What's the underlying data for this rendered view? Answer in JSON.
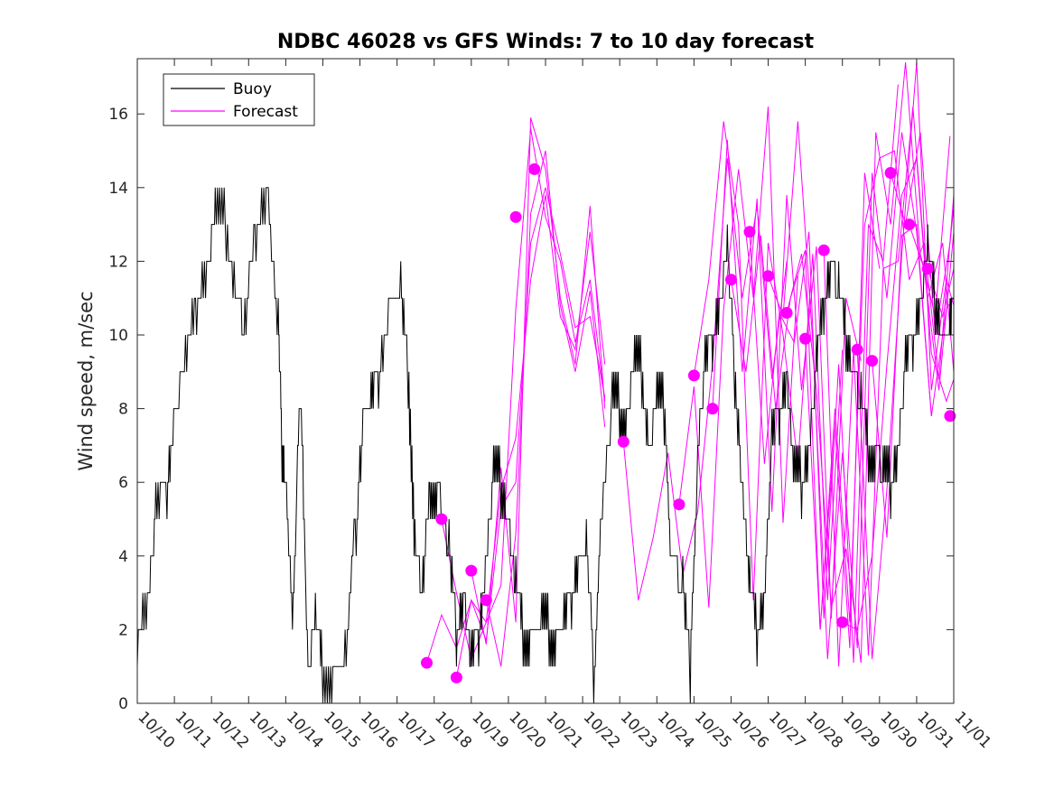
{
  "chart_data": {
    "type": "line",
    "title": "NDBC 46028 vs GFS Winds: 7 to 10 day forecast",
    "xlabel": "",
    "ylabel": "Wind speed, m/sec",
    "xlim": [
      0,
      22
    ],
    "ylim": [
      0,
      17.5
    ],
    "x_tick_labels": [
      "10/10",
      "10/11",
      "10/12",
      "10/13",
      "10/14",
      "10/15",
      "10/16",
      "10/17",
      "10/18",
      "10/19",
      "10/20",
      "10/21",
      "10/22",
      "10/23",
      "10/24",
      "10/25",
      "10/26",
      "10/27",
      "10/28",
      "10/29",
      "10/30",
      "10/31",
      "11/01"
    ],
    "y_ticks": [
      0,
      2,
      4,
      6,
      8,
      10,
      12,
      14,
      16
    ],
    "legend": {
      "position": "top-left",
      "entries": [
        {
          "label": "Buoy",
          "color": "#000000"
        },
        {
          "label": "Forecast",
          "color": "#ff00ff"
        }
      ]
    },
    "grid": false,
    "series": [
      {
        "name": "Buoy",
        "color": "#000000",
        "x": [
          0.0,
          0.3,
          0.5,
          0.8,
          1.0,
          1.3,
          1.6,
          1.9,
          2.1,
          2.4,
          2.7,
          2.9,
          3.2,
          3.5,
          3.8,
          3.9,
          4.0,
          4.2,
          4.4,
          4.6,
          4.8,
          5.0,
          5.3,
          5.6,
          5.9,
          6.1,
          6.3,
          6.5,
          6.8,
          7.1,
          7.3,
          7.5,
          7.7,
          7.9,
          8.1,
          8.4,
          8.6,
          8.8,
          9.0,
          9.2,
          9.4,
          9.6,
          9.8,
          10.0,
          10.2,
          10.4,
          10.6,
          10.9,
          11.1,
          11.3,
          11.5,
          11.7,
          11.9,
          12.1,
          12.3,
          12.5,
          12.8,
          13.0,
          13.2,
          13.4,
          13.6,
          13.8,
          14.0,
          14.2,
          14.4,
          14.7,
          14.9,
          15.1,
          15.3,
          15.5,
          15.7,
          15.9,
          16.1,
          16.3,
          16.5,
          16.7,
          16.9,
          17.1,
          17.3,
          17.5,
          17.7,
          17.9,
          18.1,
          18.3,
          18.5,
          18.7,
          18.9,
          19.1,
          19.3,
          19.5,
          19.7,
          19.9,
          20.1,
          20.3,
          20.5,
          20.7,
          20.9,
          21.1,
          21.3,
          21.5,
          21.7,
          21.9,
          22.0
        ],
        "values": [
          2,
          3,
          5,
          6,
          8,
          9,
          11,
          12,
          13,
          13,
          11,
          10,
          13,
          14,
          10,
          7,
          6,
          2,
          9,
          1,
          2,
          1,
          1,
          1,
          5,
          8,
          8,
          9,
          11,
          11,
          9,
          4,
          3,
          6,
          6,
          4,
          2,
          3,
          1,
          2,
          4,
          6,
          6,
          5,
          3,
          2,
          2,
          2,
          2,
          2,
          2,
          3,
          4,
          4,
          1,
          5,
          8,
          8,
          8,
          9,
          9,
          7,
          8,
          8,
          4,
          3,
          1,
          7,
          9,
          10,
          11,
          12,
          9,
          6,
          3,
          2,
          3,
          7,
          8,
          9,
          6,
          6,
          7,
          9,
          11,
          12,
          11,
          10,
          9,
          8,
          7,
          7,
          6,
          6,
          7,
          9,
          10,
          11,
          12,
          11,
          10,
          10,
          11
        ]
      },
      {
        "name": "Forecast run 1",
        "color": "#ff00ff",
        "x": [
          7.8,
          8.2,
          8.6,
          9.0,
          9.4,
          9.8,
          10.2,
          10.6,
          11.0,
          11.4,
          11.8,
          12.2,
          12.6
        ],
        "values": [
          1.1,
          2.4,
          1.5,
          2.8,
          2.2,
          5.8,
          7.2,
          11.5,
          13.8,
          10.5,
          9.6,
          12.8,
          9.2
        ]
      },
      {
        "name": "Forecast run 2",
        "color": "#ff00ff",
        "x": [
          8.2,
          8.6,
          9.0,
          9.4,
          9.8,
          10.2,
          10.6,
          11.0,
          11.4,
          11.8,
          12.2,
          12.6
        ],
        "values": [
          5.0,
          3.0,
          1.2,
          2.2,
          3.2,
          10.7,
          15.6,
          13.2,
          12.0,
          9.8,
          11.5,
          8.2
        ]
      },
      {
        "name": "Forecast run 3",
        "color": "#ff00ff",
        "x": [
          8.6,
          9.0,
          9.4,
          9.8,
          10.2,
          10.6,
          11.0,
          11.4,
          11.8,
          12.2,
          12.6
        ],
        "values": [
          0.7,
          2.8,
          1.7,
          5.3,
          6.0,
          12.5,
          14.0,
          12.2,
          10.2,
          10.5,
          8.3
        ]
      },
      {
        "name": "Forecast run 4",
        "color": "#ff00ff",
        "x": [
          9.0,
          9.4,
          9.8,
          10.2,
          10.6,
          11.0,
          11.4,
          11.8,
          12.2,
          12.6
        ],
        "values": [
          3.6,
          1.6,
          6.4,
          2.2,
          15.9,
          14.5,
          11.0,
          9.2,
          13.5,
          8.0
        ]
      },
      {
        "name": "Forecast run 5",
        "color": "#ff00ff",
        "x": [
          9.4,
          9.8,
          10.2,
          10.6,
          11.0,
          11.4,
          11.8,
          12.2,
          12.6
        ],
        "values": [
          2.8,
          1.0,
          4.6,
          13.3,
          15.0,
          10.8,
          9.0,
          11.2,
          7.5
        ]
      },
      {
        "name": "Forecast run 6",
        "color": "#ff00ff",
        "x": [
          13.1,
          13.5,
          13.9,
          14.3,
          14.7,
          15.1,
          15.5,
          15.9,
          16.3,
          16.7,
          17.1,
          17.5
        ],
        "values": [
          7.1,
          2.8,
          4.5,
          6.8,
          3.5,
          5.2,
          9.2,
          14.8,
          11.0,
          13.5,
          8.8,
          12.0
        ]
      },
      {
        "name": "Forecast run 7",
        "color": "#ff00ff",
        "x": [
          14.6,
          15.0,
          15.4,
          15.8,
          16.2,
          16.6,
          17.0,
          17.4,
          17.8
        ],
        "values": [
          5.4,
          8.6,
          2.6,
          10.7,
          14.5,
          11.0,
          16.2,
          4.9,
          11.6
        ]
      },
      {
        "name": "Forecast run 8",
        "color": "#ff00ff",
        "x": [
          15.0,
          15.4,
          15.8,
          16.2,
          16.6,
          17.0,
          17.4,
          17.8,
          18.2,
          18.6,
          19.0
        ],
        "values": [
          8.9,
          11.5,
          15.8,
          13.0,
          2.8,
          12.5,
          10.0,
          6.5,
          12.2,
          2.8,
          9.6
        ]
      },
      {
        "name": "Forecast run 9",
        "color": "#ff00ff",
        "x": [
          15.5,
          15.9,
          16.3,
          16.7,
          17.1,
          17.5,
          17.9,
          18.3,
          18.7,
          19.1,
          19.5
        ],
        "values": [
          8.0,
          15.3,
          9.0,
          13.7,
          5.2,
          13.8,
          8.5,
          12.4,
          2.3,
          11.0,
          9.3
        ]
      },
      {
        "name": "Forecast run 10",
        "color": "#ff00ff",
        "x": [
          16.0,
          16.4,
          16.8,
          17.2,
          17.6,
          18.0,
          18.4,
          18.8,
          19.2,
          19.6,
          20.0
        ],
        "values": [
          11.5,
          9.0,
          12.7,
          8.0,
          11.0,
          12.3,
          2.0,
          7.5,
          1.5,
          14.4,
          11.8
        ]
      },
      {
        "name": "Forecast run 11",
        "color": "#ff00ff",
        "x": [
          16.5,
          16.9,
          17.3,
          17.7,
          18.1,
          18.5,
          18.9,
          19.3,
          19.7,
          20.1,
          20.5
        ],
        "values": [
          12.8,
          6.5,
          10.6,
          9.8,
          12.8,
          2.3,
          9.2,
          1.1,
          13.0,
          12.0,
          16.8
        ]
      },
      {
        "name": "Forecast run 12",
        "color": "#ff00ff",
        "x": [
          17.0,
          17.4,
          17.8,
          18.2,
          18.6,
          19.0,
          19.4,
          19.8,
          20.2,
          20.6,
          21.0,
          21.4
        ],
        "values": [
          11.6,
          10.5,
          15.8,
          9.8,
          1.2,
          6.8,
          1.5,
          14.4,
          11.0,
          15.5,
          12.8,
          7.8
        ]
      },
      {
        "name": "Forecast run 13",
        "color": "#ff00ff",
        "x": [
          17.5,
          17.9,
          18.3,
          18.7,
          19.1,
          19.5,
          19.9,
          20.3,
          20.7,
          21.1,
          21.5,
          21.9
        ],
        "values": [
          10.6,
          12.2,
          8.5,
          2.6,
          4.2,
          1.1,
          15.5,
          13.0,
          17.4,
          12.2,
          10.5,
          15.4
        ]
      },
      {
        "name": "Forecast run 14",
        "color": "#ff00ff",
        "x": [
          18.0,
          18.4,
          18.8,
          19.2,
          19.6,
          20.0,
          20.4,
          20.8,
          21.2,
          21.6,
          22.0
        ],
        "values": [
          9.9,
          2.0,
          8.0,
          2.2,
          13.0,
          14.8,
          15.0,
          11.5,
          12.5,
          8.8,
          13.8
        ]
      },
      {
        "name": "Forecast run 15",
        "color": "#ff00ff",
        "x": [
          18.5,
          18.9,
          19.3,
          19.7,
          20.1,
          20.5,
          20.9,
          21.3,
          21.7,
          22.0
        ],
        "values": [
          12.3,
          1.0,
          9.6,
          1.3,
          11.8,
          12.0,
          16.2,
          11.0,
          12.5,
          9.0
        ]
      },
      {
        "name": "Forecast run 16",
        "color": "#ff00ff",
        "x": [
          19.0,
          19.4,
          19.8,
          20.2,
          20.6,
          21.0,
          21.4,
          21.8,
          22.0
        ],
        "values": [
          2.2,
          2.0,
          4.0,
          9.2,
          13.8,
          14.8,
          9.5,
          8.2,
          8.8
        ]
      },
      {
        "name": "Forecast run 17",
        "color": "#ff00ff",
        "x": [
          19.4,
          19.8,
          20.2,
          20.6,
          21.0,
          21.4,
          21.8,
          22.0
        ],
        "values": [
          9.6,
          1.2,
          5.8,
          12.2,
          17.4,
          8.5,
          11.5,
          10.8
        ]
      },
      {
        "name": "Forecast run 18",
        "color": "#ff00ff",
        "x": [
          19.8,
          20.2,
          20.6,
          21.0,
          21.4,
          21.8,
          22.0
        ],
        "values": [
          9.3,
          4.5,
          12.7,
          13.0,
          7.8,
          10.7,
          11.0
        ]
      },
      {
        "name": "Forecast run 19",
        "color": "#ff00ff",
        "x": [
          20.3,
          20.7,
          21.1,
          21.5,
          21.9,
          22.0
        ],
        "values": [
          14.4,
          13.0,
          15.5,
          10.0,
          12.5,
          13.5
        ]
      },
      {
        "name": "Forecast run 20",
        "color": "#ff00ff",
        "x": [
          20.8,
          21.2,
          21.6,
          22.0
        ],
        "values": [
          13.0,
          11.8,
          8.5,
          12.8
        ]
      },
      {
        "name": "Forecast run 21",
        "color": "#ff00ff",
        "x": [
          21.3,
          21.7,
          22.0
        ],
        "values": [
          11.8,
          10.5,
          11.8
        ]
      }
    ],
    "markers": {
      "name": "Forecast start points",
      "color": "#ff00ff",
      "points": [
        {
          "x": 7.8,
          "y": 1.1
        },
        {
          "x": 8.2,
          "y": 5.0
        },
        {
          "x": 8.6,
          "y": 0.7
        },
        {
          "x": 9.0,
          "y": 3.6
        },
        {
          "x": 9.4,
          "y": 2.8
        },
        {
          "x": 10.2,
          "y": 13.2
        },
        {
          "x": 10.7,
          "y": 14.5
        },
        {
          "x": 13.1,
          "y": 7.1
        },
        {
          "x": 14.6,
          "y": 5.4
        },
        {
          "x": 15.0,
          "y": 8.9
        },
        {
          "x": 15.5,
          "y": 8.0
        },
        {
          "x": 16.0,
          "y": 11.5
        },
        {
          "x": 16.5,
          "y": 12.8
        },
        {
          "x": 17.0,
          "y": 11.6
        },
        {
          "x": 17.5,
          "y": 10.6
        },
        {
          "x": 18.0,
          "y": 9.9
        },
        {
          "x": 18.5,
          "y": 12.3
        },
        {
          "x": 19.0,
          "y": 2.2
        },
        {
          "x": 19.4,
          "y": 9.6
        },
        {
          "x": 19.8,
          "y": 9.3
        },
        {
          "x": 20.3,
          "y": 14.4
        },
        {
          "x": 20.8,
          "y": 13.0
        },
        {
          "x": 21.3,
          "y": 11.8
        },
        {
          "x": 21.9,
          "y": 7.8
        }
      ]
    }
  }
}
